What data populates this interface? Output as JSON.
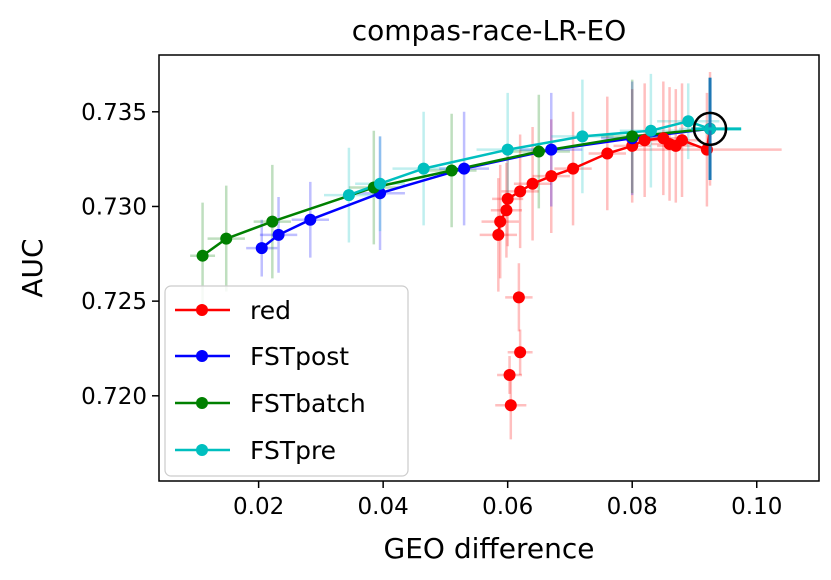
{
  "chart_data": {
    "type": "line",
    "title": "compas-race-LR-EO",
    "xlabel": "GEO difference",
    "ylabel": "AUC",
    "xlim": [
      0.004,
      0.11
    ],
    "ylim": [
      0.7155,
      0.738
    ],
    "xticks": [
      "0.02",
      "0.04",
      "0.06",
      "0.08",
      "0.10"
    ],
    "xtick_values": [
      0.02,
      0.04,
      0.06,
      0.08,
      0.1
    ],
    "yticks": [
      "0.720",
      "0.725",
      "0.730",
      "0.735"
    ],
    "ytick_values": [
      0.72,
      0.725,
      0.73,
      0.735
    ],
    "grid": false,
    "legend_position": "lower-left",
    "marker_circle": {
      "x": 0.0925,
      "y": 0.7341
    },
    "series": [
      {
        "name": "red",
        "color": "#ff0000",
        "connect_first": 4,
        "points": [
          {
            "x": 0.0605,
            "y": 0.7195,
            "xerr": 0.0025,
            "yerr": 0.0018
          },
          {
            "x": 0.0603,
            "y": 0.7211,
            "xerr": 0.002,
            "yerr": 0.001
          },
          {
            "x": 0.062,
            "y": 0.7223,
            "xerr": 0.002,
            "yerr": 0.0012
          },
          {
            "x": 0.0618,
            "y": 0.7252,
            "xerr": 0.0022,
            "yerr": 0.0018
          },
          {
            "x": 0.0585,
            "y": 0.7285,
            "xerr": 0.003,
            "yerr": 0.003
          },
          {
            "x": 0.0588,
            "y": 0.7292,
            "xerr": 0.003,
            "yerr": 0.003
          },
          {
            "x": 0.0598,
            "y": 0.7298,
            "xerr": 0.0025,
            "yerr": 0.0025
          },
          {
            "x": 0.06,
            "y": 0.7304,
            "xerr": 0.0025,
            "yerr": 0.0025
          },
          {
            "x": 0.062,
            "y": 0.7308,
            "xerr": 0.003,
            "yerr": 0.003
          },
          {
            "x": 0.064,
            "y": 0.7312,
            "xerr": 0.003,
            "yerr": 0.003
          },
          {
            "x": 0.067,
            "y": 0.7316,
            "xerr": 0.003,
            "yerr": 0.003
          },
          {
            "x": 0.0705,
            "y": 0.732,
            "xerr": 0.003,
            "yerr": 0.003
          },
          {
            "x": 0.076,
            "y": 0.7328,
            "xerr": 0.003,
            "yerr": 0.003
          },
          {
            "x": 0.08,
            "y": 0.7332,
            "xerr": 0.003,
            "yerr": 0.003
          },
          {
            "x": 0.082,
            "y": 0.7335,
            "xerr": 0.003,
            "yerr": 0.003
          },
          {
            "x": 0.085,
            "y": 0.7336,
            "xerr": 0.003,
            "yerr": 0.003
          },
          {
            "x": 0.086,
            "y": 0.7333,
            "xerr": 0.003,
            "yerr": 0.003
          },
          {
            "x": 0.087,
            "y": 0.7332,
            "xerr": 0.003,
            "yerr": 0.003
          },
          {
            "x": 0.088,
            "y": 0.7335,
            "xerr": 0.003,
            "yerr": 0.003
          },
          {
            "x": 0.092,
            "y": 0.733,
            "xerr": 0.012,
            "yerr": 0.003
          },
          {
            "x": 0.0925,
            "y": 0.7341,
            "xerr": 0.003,
            "yerr": 0.003
          }
        ]
      },
      {
        "name": "FSTpost",
        "color": "#0000ff",
        "connect_first": 0,
        "points": [
          {
            "x": 0.0205,
            "y": 0.7278,
            "xerr": 0.0025,
            "yerr": 0.0015
          },
          {
            "x": 0.0232,
            "y": 0.7285,
            "xerr": 0.003,
            "yerr": 0.002
          },
          {
            "x": 0.0283,
            "y": 0.7293,
            "xerr": 0.003,
            "yerr": 0.002
          },
          {
            "x": 0.0395,
            "y": 0.7307,
            "xerr": 0.004,
            "yerr": 0.003
          },
          {
            "x": 0.053,
            "y": 0.732,
            "xerr": 0.004,
            "yerr": 0.003
          },
          {
            "x": 0.067,
            "y": 0.733,
            "xerr": 0.005,
            "yerr": 0.003
          },
          {
            "x": 0.08,
            "y": 0.7336,
            "xerr": 0.005,
            "yerr": 0.003
          },
          {
            "x": 0.0925,
            "y": 0.7341,
            "xerr": 0.003,
            "yerr": 0.0027
          }
        ]
      },
      {
        "name": "FSTbatch",
        "color": "#008000",
        "connect_first": 0,
        "points": [
          {
            "x": 0.011,
            "y": 0.7274,
            "xerr": 0.002,
            "yerr": 0.0028
          },
          {
            "x": 0.0148,
            "y": 0.7283,
            "xerr": 0.003,
            "yerr": 0.0028
          },
          {
            "x": 0.0222,
            "y": 0.7292,
            "xerr": 0.003,
            "yerr": 0.003
          },
          {
            "x": 0.0385,
            "y": 0.731,
            "xerr": 0.004,
            "yerr": 0.003
          },
          {
            "x": 0.051,
            "y": 0.7319,
            "xerr": 0.004,
            "yerr": 0.003
          },
          {
            "x": 0.065,
            "y": 0.7329,
            "xerr": 0.005,
            "yerr": 0.003
          },
          {
            "x": 0.08,
            "y": 0.7337,
            "xerr": 0.005,
            "yerr": 0.003
          },
          {
            "x": 0.0925,
            "y": 0.7341,
            "xerr": 0.003,
            "yerr": 0.0027
          }
        ]
      },
      {
        "name": "FSTpre",
        "color": "#00bfbf",
        "connect_first": 0,
        "points": [
          {
            "x": 0.0345,
            "y": 0.7306,
            "xerr": 0.004,
            "yerr": 0.0025
          },
          {
            "x": 0.0395,
            "y": 0.7312,
            "xerr": 0.004,
            "yerr": 0.0025
          },
          {
            "x": 0.0465,
            "y": 0.732,
            "xerr": 0.005,
            "yerr": 0.003
          },
          {
            "x": 0.06,
            "y": 0.733,
            "xerr": 0.005,
            "yerr": 0.003
          },
          {
            "x": 0.072,
            "y": 0.7337,
            "xerr": 0.005,
            "yerr": 0.003
          },
          {
            "x": 0.083,
            "y": 0.734,
            "xerr": 0.005,
            "yerr": 0.003
          },
          {
            "x": 0.089,
            "y": 0.7345,
            "xerr": 0.005,
            "yerr": 0.002
          },
          {
            "x": 0.0925,
            "y": 0.7341,
            "xerr": 0.005,
            "yerr": 0.0027
          }
        ]
      }
    ]
  }
}
